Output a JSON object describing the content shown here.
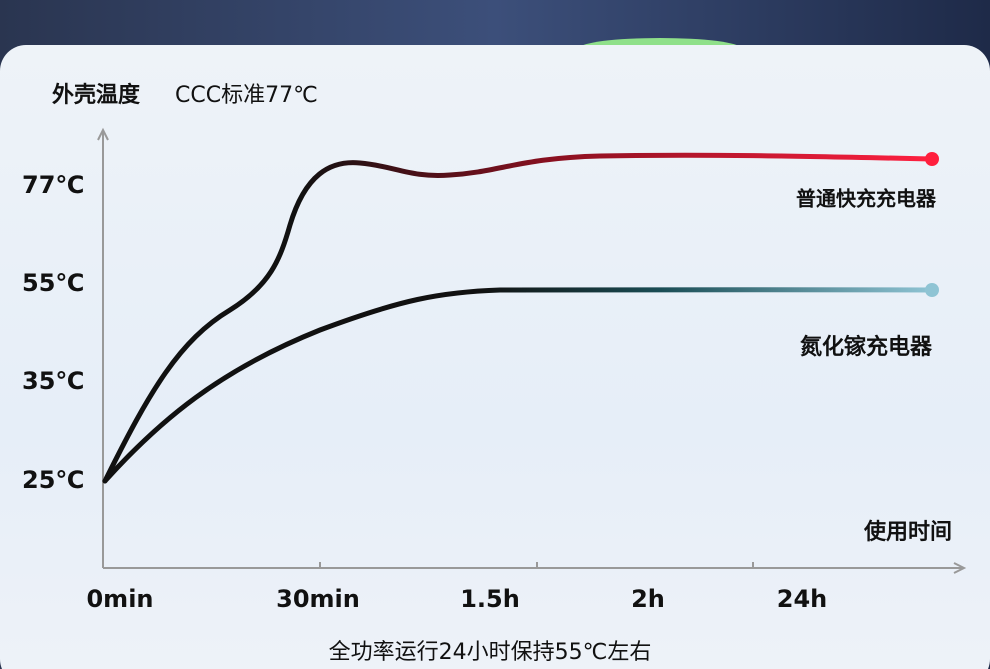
{
  "header": {
    "title": "外壳温度",
    "subtitle": "CCC标准77℃"
  },
  "y_axis": {
    "labels": [
      "77℃",
      "55℃",
      "35℃",
      "25℃"
    ]
  },
  "x_axis": {
    "title": "使用时间",
    "labels": [
      "0min",
      "30min",
      "1.5h",
      "2h",
      "24h"
    ]
  },
  "curves": [
    {
      "name": "普通快充充电器"
    },
    {
      "name": "氮化镓充电器"
    }
  ],
  "footer": {
    "note": "全功率运行24小时保持55℃左右"
  }
}
